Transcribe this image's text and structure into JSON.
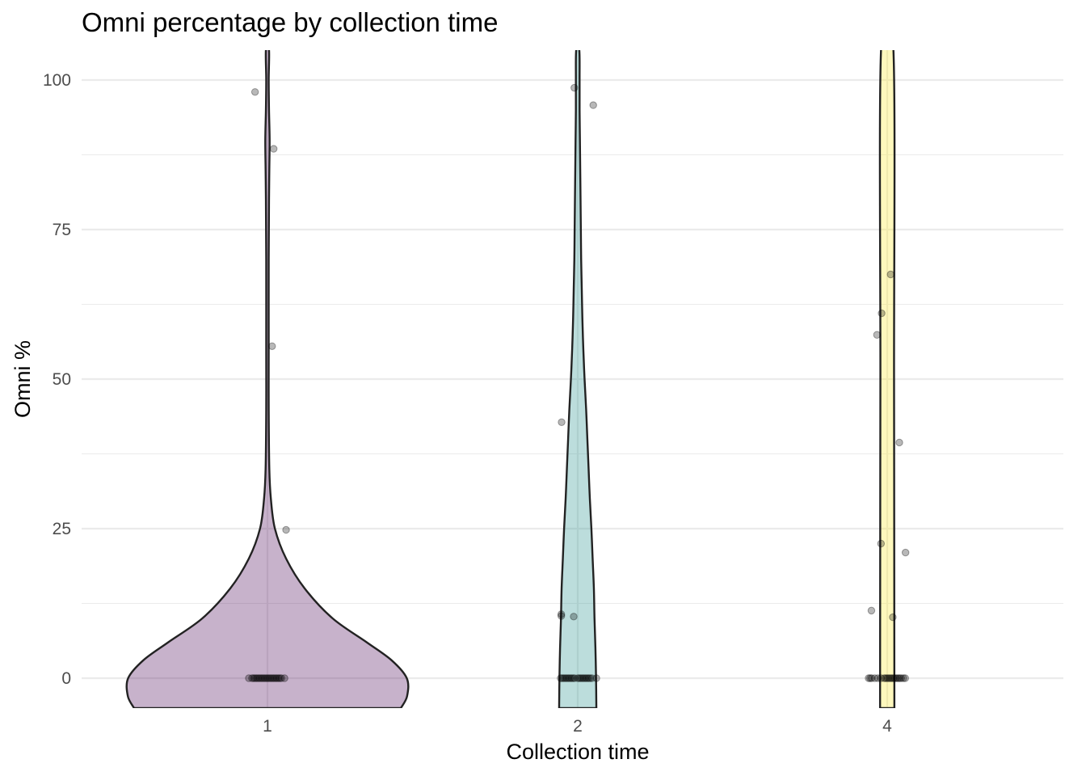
{
  "chart_data": {
    "type": "violin",
    "title": "Omni percentage by collection time",
    "xlabel": "Collection time",
    "ylabel": "Omni %",
    "categories": [
      "1",
      "2",
      "4"
    ],
    "ylim": [
      -5,
      105
    ],
    "y_ticks": [
      0,
      25,
      50,
      75,
      100
    ],
    "y_tick_labels": [
      "0",
      "25",
      "50",
      "75",
      "100"
    ],
    "grid": true,
    "legend": "none",
    "series": [
      {
        "category": "1",
        "fill": "#440154",
        "half_width": [
          [
            -5,
            0.43
          ],
          [
            -3,
            0.45
          ],
          [
            0,
            0.449
          ],
          [
            3,
            0.4
          ],
          [
            6,
            0.32
          ],
          [
            10,
            0.21
          ],
          [
            15,
            0.12
          ],
          [
            20,
            0.06
          ],
          [
            25,
            0.024
          ],
          [
            30,
            0.011
          ],
          [
            35,
            0.006
          ],
          [
            45,
            0.004
          ],
          [
            55,
            0.004
          ],
          [
            70,
            0.004
          ],
          [
            80,
            0.005
          ],
          [
            85,
            0.006
          ],
          [
            90,
            0.007
          ],
          [
            95,
            0.005
          ],
          [
            100,
            0.004
          ],
          [
            105,
            0.005
          ]
        ],
        "points": [
          {
            "dx": -0.04,
            "y": 98
          },
          {
            "dx": 0.02,
            "y": 88.5
          },
          {
            "dx": 0.015,
            "y": 55.5
          },
          {
            "dx": 0.06,
            "y": 24.8
          },
          {
            "dx": -0.06,
            "y": 0
          },
          {
            "dx": -0.05,
            "y": 0
          },
          {
            "dx": -0.045,
            "y": 0
          },
          {
            "dx": -0.04,
            "y": 0
          },
          {
            "dx": -0.035,
            "y": 0
          },
          {
            "dx": -0.03,
            "y": 0
          },
          {
            "dx": -0.025,
            "y": 0
          },
          {
            "dx": -0.02,
            "y": 0
          },
          {
            "dx": -0.015,
            "y": 0
          },
          {
            "dx": -0.01,
            "y": 0
          },
          {
            "dx": -0.005,
            "y": 0
          },
          {
            "dx": 0.0,
            "y": 0
          },
          {
            "dx": 0.005,
            "y": 0
          },
          {
            "dx": 0.01,
            "y": 0
          },
          {
            "dx": 0.015,
            "y": 0
          },
          {
            "dx": 0.02,
            "y": 0
          },
          {
            "dx": 0.025,
            "y": 0
          },
          {
            "dx": 0.03,
            "y": 0
          },
          {
            "dx": 0.035,
            "y": 0
          },
          {
            "dx": 0.04,
            "y": 0
          },
          {
            "dx": 0.045,
            "y": 0
          },
          {
            "dx": 0.055,
            "y": 0
          }
        ]
      },
      {
        "category": "2",
        "fill": "#21908C",
        "half_width": [
          [
            -5,
            0.06
          ],
          [
            0,
            0.059
          ],
          [
            5,
            0.057
          ],
          [
            10,
            0.054
          ],
          [
            15,
            0.052
          ],
          [
            20,
            0.048
          ],
          [
            25,
            0.044
          ],
          [
            30,
            0.039
          ],
          [
            35,
            0.035
          ],
          [
            40,
            0.031
          ],
          [
            45,
            0.027
          ],
          [
            50,
            0.022
          ],
          [
            55,
            0.018
          ],
          [
            60,
            0.015
          ],
          [
            65,
            0.013
          ],
          [
            70,
            0.011
          ],
          [
            75,
            0.01
          ],
          [
            80,
            0.009
          ],
          [
            85,
            0.008
          ],
          [
            90,
            0.007
          ],
          [
            95,
            0.006
          ],
          [
            100,
            0.006
          ],
          [
            105,
            0.005
          ]
        ],
        "points": [
          {
            "dx": -0.011,
            "y": 98.7
          },
          {
            "dx": 0.05,
            "y": 95.8
          },
          {
            "dx": -0.052,
            "y": 42.8
          },
          {
            "dx": -0.053,
            "y": 10.7
          },
          {
            "dx": -0.053,
            "y": 10.4
          },
          {
            "dx": -0.013,
            "y": 10.3
          },
          {
            "dx": -0.055,
            "y": 0
          },
          {
            "dx": -0.05,
            "y": 0
          },
          {
            "dx": -0.045,
            "y": 0
          },
          {
            "dx": -0.04,
            "y": 0
          },
          {
            "dx": -0.035,
            "y": 0
          },
          {
            "dx": -0.03,
            "y": 0
          },
          {
            "dx": -0.025,
            "y": 0
          },
          {
            "dx": -0.02,
            "y": 0
          },
          {
            "dx": -0.015,
            "y": 0
          },
          {
            "dx": -0.01,
            "y": 0
          },
          {
            "dx": 0.0,
            "y": 0
          },
          {
            "dx": 0.005,
            "y": 0
          },
          {
            "dx": 0.01,
            "y": 0
          },
          {
            "dx": 0.015,
            "y": 0
          },
          {
            "dx": 0.02,
            "y": 0
          },
          {
            "dx": 0.025,
            "y": 0
          },
          {
            "dx": 0.03,
            "y": 0
          },
          {
            "dx": 0.035,
            "y": 0
          },
          {
            "dx": 0.04,
            "y": 0
          },
          {
            "dx": 0.046,
            "y": 0
          },
          {
            "dx": 0.06,
            "y": 0
          }
        ]
      },
      {
        "category": "4",
        "fill": "#FDE725",
        "half_width": [
          [
            -5,
            0.023
          ],
          [
            0,
            0.023
          ],
          [
            50,
            0.022
          ],
          [
            105,
            0.02
          ]
        ],
        "points": [
          {
            "dx": 0.011,
            "y": 67.5
          },
          {
            "dx": -0.018,
            "y": 61
          },
          {
            "dx": -0.033,
            "y": 57.4
          },
          {
            "dx": 0.039,
            "y": 39.4
          },
          {
            "dx": -0.02,
            "y": 22.5
          },
          {
            "dx": 0.059,
            "y": 21
          },
          {
            "dx": -0.051,
            "y": 11.3
          },
          {
            "dx": 0.018,
            "y": 10.2
          },
          {
            "dx": -0.06,
            "y": 0
          },
          {
            "dx": -0.055,
            "y": 0
          },
          {
            "dx": -0.05,
            "y": 0
          },
          {
            "dx": -0.04,
            "y": 0
          },
          {
            "dx": -0.03,
            "y": 0
          },
          {
            "dx": -0.02,
            "y": 0
          },
          {
            "dx": -0.01,
            "y": 0
          },
          {
            "dx": -0.005,
            "y": 0
          },
          {
            "dx": 0.0,
            "y": 0
          },
          {
            "dx": 0.005,
            "y": 0
          },
          {
            "dx": 0.01,
            "y": 0
          },
          {
            "dx": 0.015,
            "y": 0
          },
          {
            "dx": 0.02,
            "y": 0
          },
          {
            "dx": 0.025,
            "y": 0
          },
          {
            "dx": 0.03,
            "y": 0
          },
          {
            "dx": 0.035,
            "y": 0
          },
          {
            "dx": 0.04,
            "y": 0
          },
          {
            "dx": 0.045,
            "y": 0
          },
          {
            "dx": 0.052,
            "y": 0
          },
          {
            "dx": 0.058,
            "y": 0
          }
        ]
      }
    ]
  }
}
